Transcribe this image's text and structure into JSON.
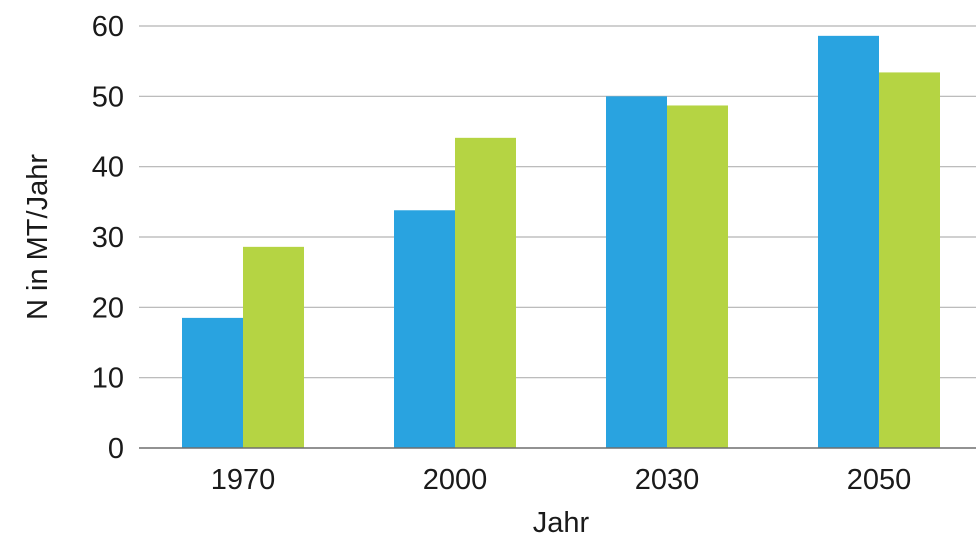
{
  "chart_data": {
    "type": "bar",
    "title": "",
    "xlabel": "Jahr",
    "ylabel": "N in MT/Jahr",
    "categories": [
      "1970",
      "2000",
      "2030",
      "2050"
    ],
    "series": [
      {
        "values": [
          18.5,
          33.8,
          50.0,
          58.6
        ],
        "color": "#29a3e0"
      },
      {
        "values": [
          28.6,
          44.1,
          48.7,
          53.4
        ],
        "color": "#b5d443"
      }
    ],
    "ylim": [
      0,
      60
    ],
    "yticks": [
      "0",
      "10",
      "20",
      "30",
      "40",
      "50",
      "60"
    ],
    "grid": true,
    "legend": "none"
  }
}
